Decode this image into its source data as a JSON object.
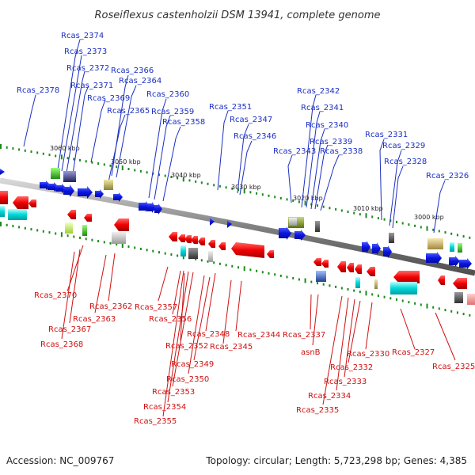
{
  "title": "Roseiflexus castenholzii DSM 13941, complete genome",
  "footer": {
    "accession": "Accession: NC_009767",
    "info": "Topology: circular; Length: 5,723,298 bp; Genes: 4,385"
  },
  "ticks": [
    "3060 kbp",
    "3050 kbp",
    "3040 kbp",
    "3030 kbp",
    "3020 kbp",
    "3010 kbp",
    "3000 kbp"
  ],
  "labels_top": [
    "Rcas_2374",
    "Rcas_2373",
    "Rcas_2372",
    "Rcas_2371",
    "Rcas_2378",
    "Rcas_2369",
    "Rcas_2366",
    "Rcas_2364",
    "Rcas_2365",
    "Rcas_2360",
    "Rcas_2359",
    "Rcas_2358",
    "Rcas_2351",
    "Rcas_2347",
    "Rcas_2346",
    "Rcas_2342",
    "Rcas_2341",
    "Rcas_2340",
    "Rcas_2339",
    "Rcas_2343",
    "Rcas_2338",
    "Rcas_2331",
    "Rcas_2329",
    "Rcas_2328",
    "Rcas_2326"
  ],
  "labels_bottom": [
    "Rcas_2370",
    "Rcas_2362",
    "Rcas_2363",
    "Rcas_2367",
    "Rcas_2368",
    "Rcas_2357",
    "Rcas_2356",
    "Rcas_2348",
    "Rcas_2344",
    "Rcas_2352",
    "Rcas_2345",
    "Rcas_2349",
    "Rcas_2350",
    "Rcas_2353",
    "Rcas_2354",
    "Rcas_2355",
    "Rcas_2337",
    "asnB",
    "Rcas_2330",
    "Rcas_2327",
    "Rcas_2332",
    "Rcas_2325",
    "Rcas_2333",
    "Rcas_2334",
    "Rcas_2335"
  ]
}
